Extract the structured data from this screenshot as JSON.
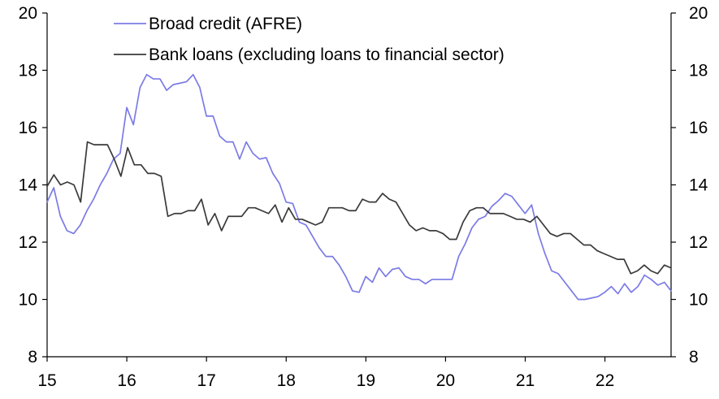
{
  "chart_data": {
    "type": "line",
    "title": "",
    "xlabel": "",
    "ylabel": "",
    "xlim": [
      2015,
      2022.83
    ],
    "ylim": [
      8,
      20
    ],
    "y_ticks": [
      8,
      10,
      12,
      14,
      16,
      18,
      20
    ],
    "x_ticks": [
      {
        "value": 2015,
        "label": "15"
      },
      {
        "value": 2016,
        "label": "16"
      },
      {
        "value": 2017,
        "label": "17"
      },
      {
        "value": 2018,
        "label": "18"
      },
      {
        "value": 2019,
        "label": "19"
      },
      {
        "value": 2020,
        "label": "20"
      },
      {
        "value": 2021,
        "label": "21"
      },
      {
        "value": 2022,
        "label": "22"
      }
    ],
    "secondary_y_axis": true,
    "grid": false,
    "legend_position": "top-center",
    "series": [
      {
        "name": "Broad credit (AFRE)",
        "color": "#7b7be6",
        "values": [
          13.4,
          13.9,
          12.9,
          12.4,
          12.3,
          12.6,
          13.1,
          13.5,
          14.0,
          14.4,
          14.9,
          15.1,
          16.7,
          16.1,
          17.4,
          17.85,
          17.7,
          17.7,
          17.3,
          17.5,
          17.55,
          17.6,
          17.85,
          17.4,
          16.4,
          16.4,
          15.7,
          15.5,
          15.5,
          14.9,
          15.5,
          15.1,
          14.9,
          14.95,
          14.4,
          14.05,
          13.4,
          13.35,
          12.7,
          12.6,
          12.2,
          11.8,
          11.5,
          11.5,
          11.2,
          10.8,
          10.3,
          10.25,
          10.8,
          10.6,
          11.1,
          10.8,
          11.05,
          11.1,
          10.8,
          10.7,
          10.7,
          10.55,
          10.7,
          10.7,
          10.7,
          10.7,
          11.5,
          11.95,
          12.5,
          12.8,
          12.9,
          13.25,
          13.45,
          13.7,
          13.6,
          13.3,
          13.0,
          13.3,
          12.3,
          11.6,
          11.0,
          10.9,
          10.6,
          10.3,
          10.0,
          10.0,
          10.05,
          10.1,
          10.25,
          10.45,
          10.2,
          10.55,
          10.25,
          10.45,
          10.85,
          10.7,
          10.5,
          10.6,
          10.3
        ]
      },
      {
        "name": "Bank loans (excluding loans to financial sector)",
        "color": "#3a3a3a",
        "values": [
          13.95,
          14.35,
          14.0,
          14.1,
          14.0,
          13.4,
          15.5,
          15.4,
          15.4,
          15.4,
          14.9,
          14.3,
          15.3,
          14.7,
          14.7,
          14.4,
          14.4,
          14.3,
          12.9,
          13.0,
          13.0,
          13.1,
          13.1,
          13.5,
          12.6,
          13.0,
          12.4,
          12.9,
          12.9,
          12.9,
          13.2,
          13.2,
          13.1,
          13.0,
          13.3,
          12.7,
          13.2,
          12.8,
          12.8,
          12.7,
          12.6,
          12.7,
          13.2,
          13.2,
          13.2,
          13.1,
          13.1,
          13.5,
          13.4,
          13.4,
          13.7,
          13.5,
          13.4,
          13.0,
          12.6,
          12.4,
          12.5,
          12.4,
          12.4,
          12.3,
          12.1,
          12.1,
          12.7,
          13.1,
          13.2,
          13.2,
          13.0,
          13.0,
          13.0,
          12.9,
          12.8,
          12.8,
          12.7,
          12.9,
          12.6,
          12.3,
          12.2,
          12.3,
          12.3,
          12.1,
          11.9,
          11.9,
          11.7,
          11.6,
          11.5,
          11.4,
          11.4,
          10.9,
          11.0,
          11.2,
          11.0,
          10.9,
          11.2,
          11.1
        ]
      }
    ]
  }
}
